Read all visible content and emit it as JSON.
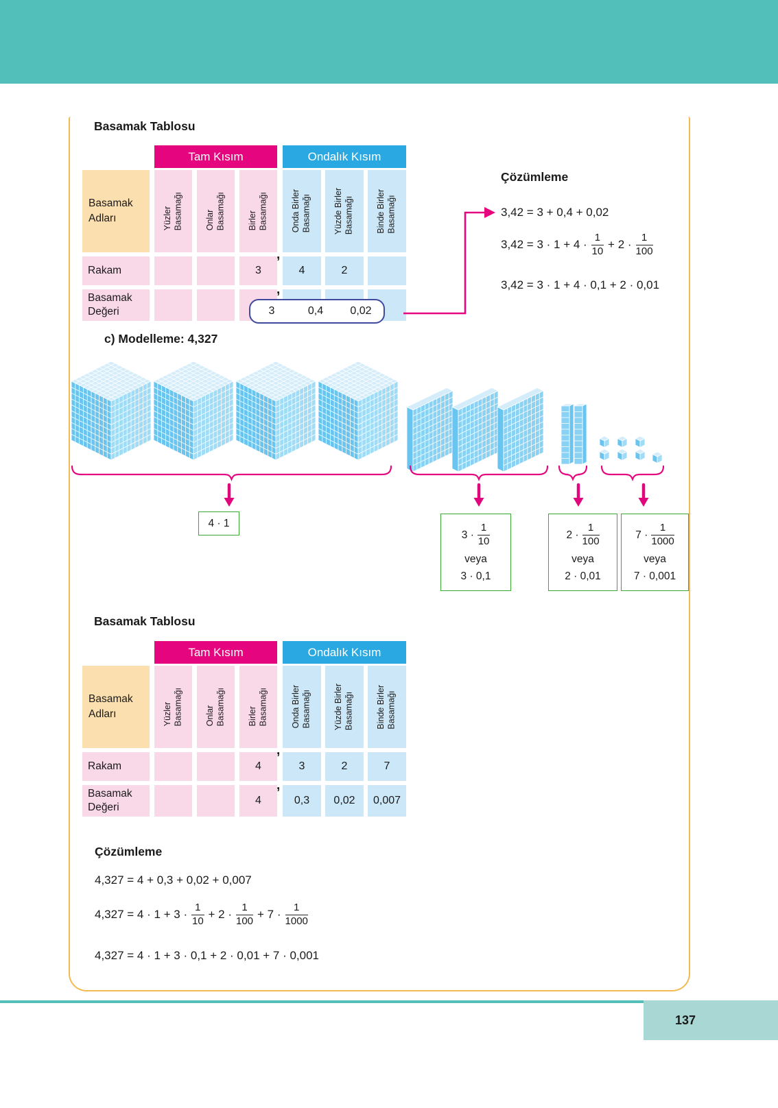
{
  "table": {
    "title": "Basamak Tablosu",
    "whole_part": "Tam Kısım",
    "decimal_part": "Ondalık Kısım",
    "row_names_label": "Basamak Adları",
    "rakam_label": "Rakam",
    "deger_label": "Basamak Değeri",
    "comma": ",",
    "columns": {
      "whole": [
        {
          "l1": "Yüzler",
          "l2": "Basamağı"
        },
        {
          "l1": "Onlar",
          "l2": "Basamağı"
        },
        {
          "l1": "Birler",
          "l2": "Basamağı"
        }
      ],
      "decimal": [
        {
          "l1": "Onda Birler",
          "l2": "Basamağı"
        },
        {
          "l1": "Yüzde Birler",
          "l2": "Basamağı"
        },
        {
          "l1": "Binde Birler",
          "l2": "Basamağı"
        }
      ]
    }
  },
  "table1": {
    "rakam": {
      "birler": "3",
      "onda": "4",
      "yuzde": "2",
      "binde": ""
    },
    "deger": {
      "birler": "3",
      "onda": "0,4",
      "yuzde": "0,02",
      "binde": ""
    }
  },
  "analysis1": {
    "title": "Çözümleme",
    "line1": "3,42 = 3 + 0,4 + 0,02",
    "line2": {
      "p1": "3,42 = 3 · 1 + 4 ·",
      "f1n": "1",
      "f1d": "10",
      "p2": "+ 2 ·",
      "f2n": "1",
      "f2d": "100"
    },
    "line3": "3,42 = 3 · 1 + 4 · 0,1 + 2 · 0,01"
  },
  "model": {
    "title": "c) Modelleme: 4,327",
    "counts": {
      "ones": 4,
      "tenths": 3,
      "hundredths": 2,
      "thousandths": 7
    },
    "box_ones": {
      "text": "4 · 1"
    },
    "box_tenths": {
      "top": "3 ·",
      "fn": "1",
      "fd": "10",
      "or": "veya",
      "bottom": "3 · 0,1"
    },
    "box_hundredths": {
      "top": "2 ·",
      "fn": "1",
      "fd": "100",
      "or": "veya",
      "bottom": "2 · 0,01"
    },
    "box_thousandths": {
      "top": "7 ·",
      "fn": "1",
      "fd": "1000",
      "or": "veya",
      "bottom": "7 · 0,001"
    }
  },
  "table2": {
    "rakam": {
      "birler": "4",
      "onda": "3",
      "yuzde": "2",
      "binde": "7"
    },
    "deger": {
      "birler": "4",
      "onda": "0,3",
      "yuzde": "0,02",
      "binde": "0,007"
    }
  },
  "analysis2": {
    "title": "Çözümleme",
    "line1": "4,327 = 4 + 0,3 + 0,02 + 0,007",
    "line2": {
      "p1": "4,327 = 4 · 1 + 3 ·",
      "f1n": "1",
      "f1d": "10",
      "p2": "+ 2 ·",
      "f2n": "1",
      "f2d": "100",
      "p3": "+ 7 ·",
      "f3n": "1",
      "f3d": "1000"
    },
    "line3": "4,327 = 4 · 1 + 3 · 0,1 + 2 · 0,01 + 7 · 0,001"
  },
  "footer": {
    "page_number": "137"
  },
  "colors": {
    "accent_magenta": "#e5067f",
    "accent_blue": "#29a8e1",
    "teal_bar": "#52bfba",
    "green_border": "#3aaa35",
    "orange_border": "#f2bb52",
    "navy_border": "#3f4a9e"
  }
}
